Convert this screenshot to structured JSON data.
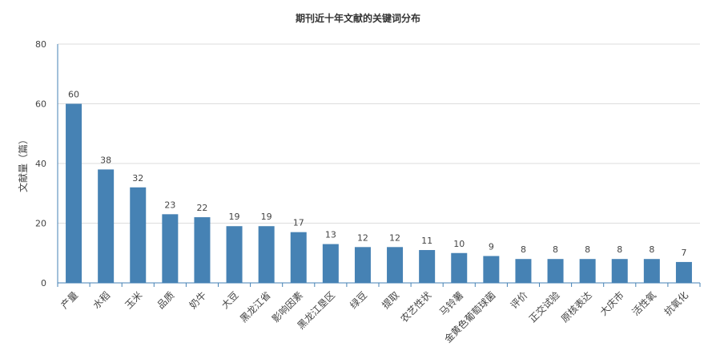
{
  "chart_data": {
    "type": "bar",
    "title": "期刊近十年文献的关键词分布",
    "xlabel": "",
    "ylabel": "文献量（篇）",
    "ylim": [
      0,
      80
    ],
    "yticks": [
      0,
      20,
      40,
      60,
      80
    ],
    "grid": true,
    "legend": "none",
    "bar_color": "#4682b4",
    "categories": [
      "产量",
      "水稻",
      "玉米",
      "品质",
      "奶牛",
      "大豆",
      "黑龙江省",
      "影响因素",
      "黑龙江垦区",
      "绿豆",
      "提取",
      "农艺性状",
      "马铃薯",
      "金黄色葡萄球菌",
      "评价",
      "正交试验",
      "原核表达",
      "大庆市",
      "活性氧",
      "抗氧化"
    ],
    "values": [
      60,
      38,
      32,
      23,
      22,
      19,
      19,
      17,
      13,
      12,
      12,
      11,
      10,
      9,
      8,
      8,
      8,
      8,
      8,
      7
    ]
  }
}
